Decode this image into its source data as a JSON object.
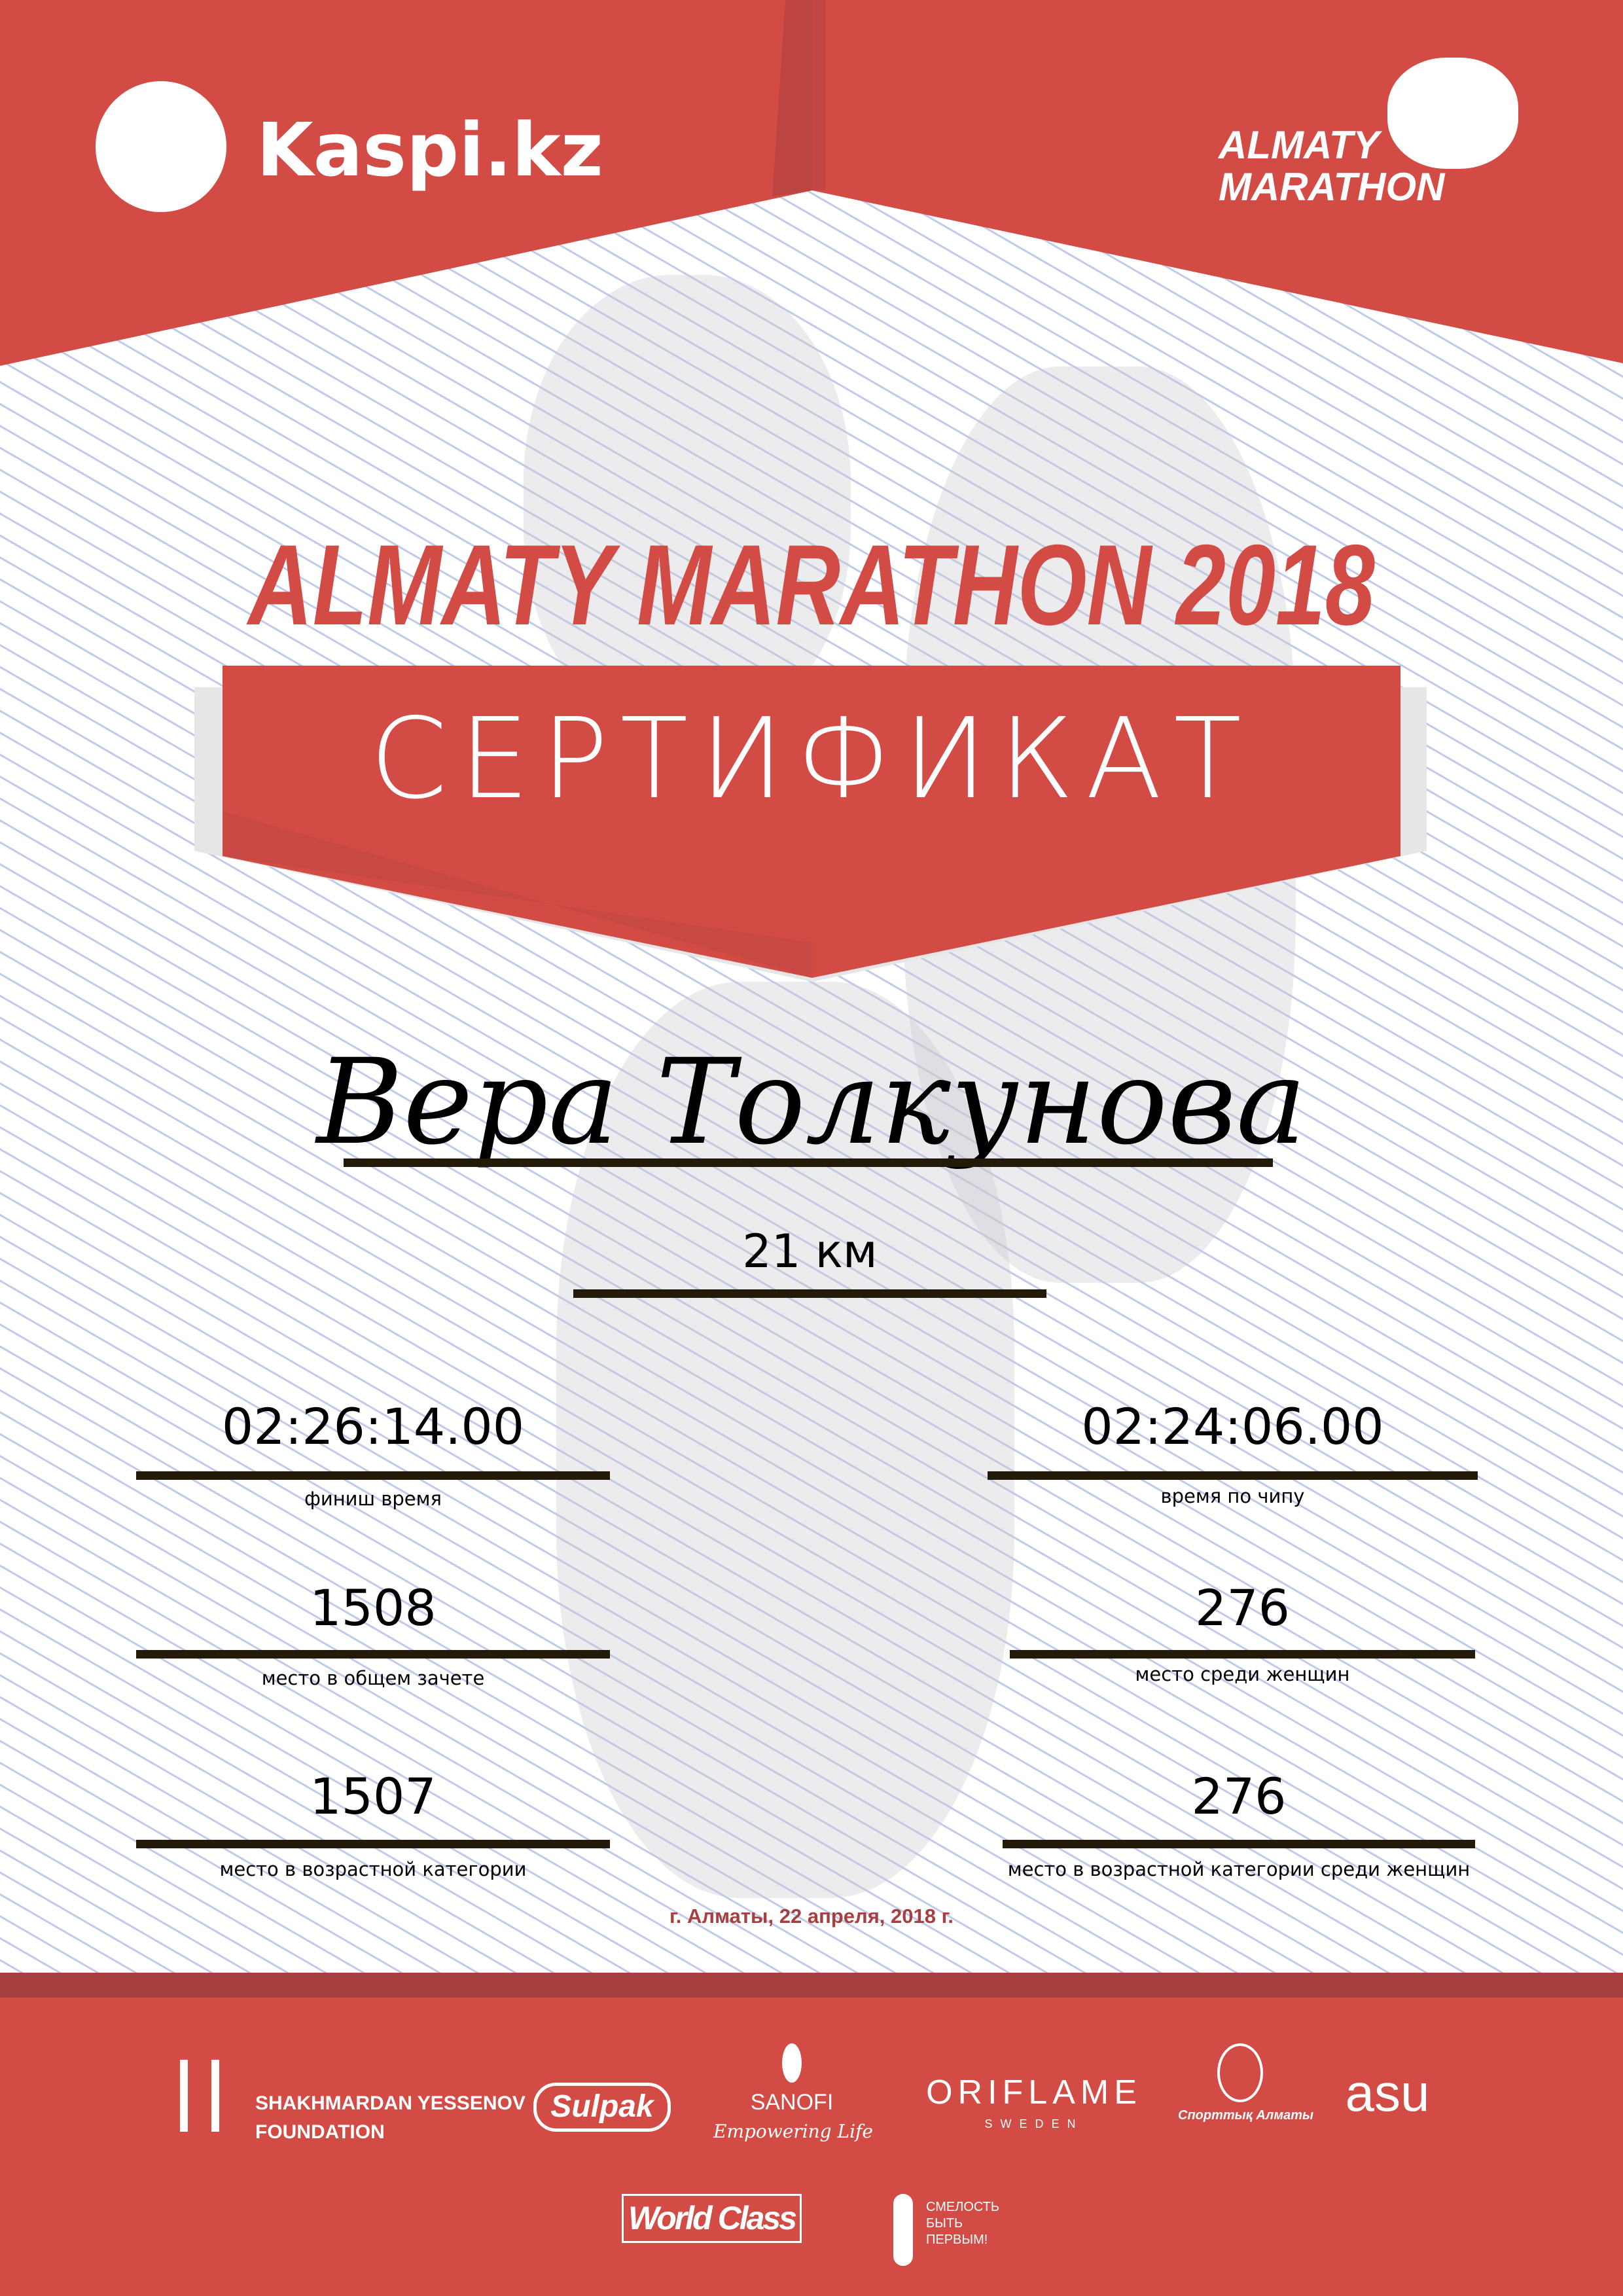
{
  "header": {
    "left_logo": "Kaspi.kz",
    "right_logo_line1": "ALMATY",
    "right_logo_line2": "MARATHON"
  },
  "event_title": "ALMATY MARATHON 2018",
  "certificate_label": "СЕРТИФИКАТ",
  "participant_name": "Вера Толкунова",
  "distance": "21 км",
  "results": [
    {
      "value": "02:26:14.00",
      "label": "финиш время"
    },
    {
      "value": "02:24:06.00",
      "label": "время по чипу"
    },
    {
      "value": "1508",
      "label": "место в общем зачете"
    },
    {
      "value": "276",
      "label": "место среди женщин"
    },
    {
      "value": "1507",
      "label": "место в возрастной категории"
    },
    {
      "value": "276",
      "label": "место в возрастной категории среди женщин"
    }
  ],
  "date_place": "г. Алматы, 22 апреля, 2018 г.",
  "sponsors": {
    "yessenov_1": "SHAKHMARDAN YESSENOV",
    "yessenov_2": "FOUNDATION",
    "sulpak": "Sulpak",
    "sanofi": "SANOFI",
    "sanofi_tagline": "Empowering Life",
    "oriflame": "ORIFLAME",
    "oriflame_sub": "SWEDEN",
    "sport_almaty": "Спорттық Алматы",
    "asu": "asu",
    "worldclass": "World Class",
    "fund_1": "СМЕЛОСТЬ",
    "fund_2": "БЫТЬ",
    "fund_3": "ПЕРВЫМ!"
  },
  "colors": {
    "brand_red": "#d24b45",
    "dark_red": "#a63f3f",
    "rule": "#231a0a"
  }
}
